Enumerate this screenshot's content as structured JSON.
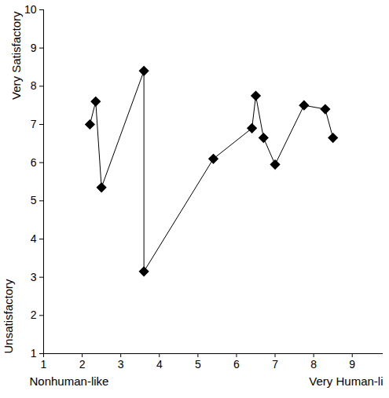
{
  "chart_data": {
    "type": "line",
    "xlabel_low": "Nonhuman-like",
    "xlabel_high": "Very Human-li",
    "ylabel_low": "Unsatisfactory",
    "ylabel_high": "Very Satisfactory",
    "x": [
      2.2,
      2.35,
      2.5,
      3.6,
      3.6,
      5.4,
      6.4,
      6.5,
      6.7,
      7.0,
      7.75,
      8.3,
      8.5
    ],
    "values": [
      7.0,
      7.6,
      5.35,
      8.4,
      3.15,
      6.1,
      6.9,
      7.75,
      6.65,
      5.95,
      7.5,
      7.4,
      6.65
    ],
    "color": "#000000",
    "marker": "diamond",
    "line_style": "solid",
    "xlim": [
      1,
      9.8
    ],
    "ylim": [
      1,
      10
    ],
    "xticks": [
      1,
      2,
      3,
      4,
      5,
      6,
      7,
      8,
      9
    ],
    "yticks": [
      1,
      2,
      3,
      4,
      5,
      6,
      7,
      8,
      9,
      10
    ],
    "grid": false
  }
}
